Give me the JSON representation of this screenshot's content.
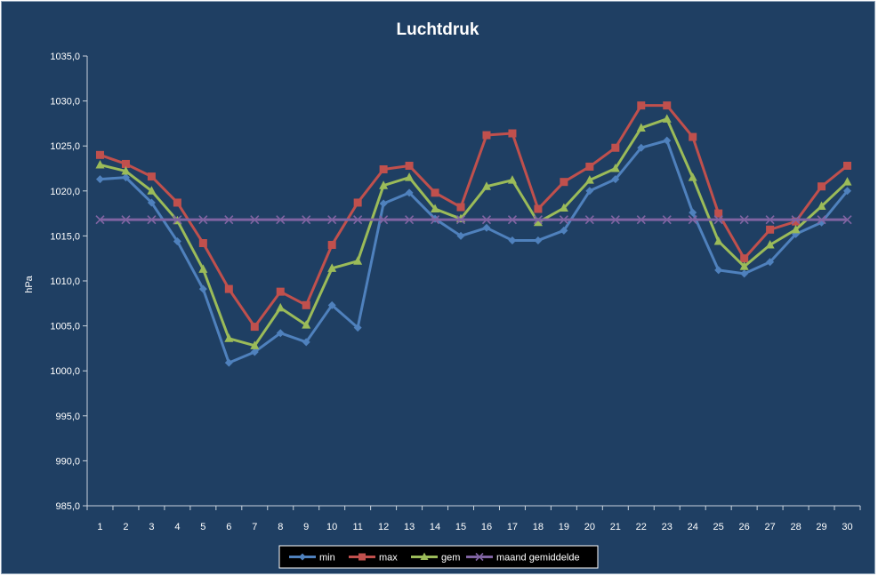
{
  "chart_data": {
    "type": "line",
    "title": "Luchtdruk",
    "xlabel": "",
    "ylabel": "hPa",
    "ylim": [
      985.0,
      1035.0
    ],
    "y_ticks": [
      "985,0",
      "990,0",
      "995,0",
      "1000,0",
      "1005,0",
      "1010,0",
      "1015,0",
      "1020,0",
      "1025,0",
      "1030,0",
      "1035,0"
    ],
    "categories": [
      "1",
      "2",
      "3",
      "4",
      "5",
      "6",
      "7",
      "8",
      "9",
      "10",
      "11",
      "12",
      "13",
      "14",
      "15",
      "16",
      "17",
      "18",
      "19",
      "20",
      "21",
      "22",
      "23",
      "24",
      "25",
      "26",
      "27",
      "28",
      "29",
      "30"
    ],
    "grid": false,
    "legend_position": "bottom",
    "series": [
      {
        "name": "min",
        "color": "#4f81bd",
        "marker": "diamond",
        "values": [
          1021.3,
          1021.5,
          1018.7,
          1014.4,
          1009.1,
          1000.9,
          1002.1,
          1004.2,
          1003.2,
          1007.3,
          1004.8,
          1018.6,
          1019.8,
          1016.9,
          1015.0,
          1015.9,
          1014.5,
          1014.5,
          1015.6,
          1020.0,
          1021.3,
          1024.8,
          1025.6,
          1017.6,
          1011.2,
          1010.8,
          1012.1,
          1015.2,
          1016.5,
          1020.0
        ]
      },
      {
        "name": "max",
        "color": "#c0504d",
        "marker": "square",
        "values": [
          1024.0,
          1023.0,
          1021.6,
          1018.7,
          1014.2,
          1009.1,
          1004.9,
          1008.8,
          1007.3,
          1014.0,
          1018.7,
          1022.4,
          1022.8,
          1019.8,
          1018.2,
          1026.2,
          1026.4,
          1018.0,
          1021.0,
          1022.7,
          1024.8,
          1029.5,
          1029.5,
          1026.0,
          1017.5,
          1012.5,
          1015.7,
          1016.6,
          1020.5,
          1022.8
        ]
      },
      {
        "name": "gem",
        "color": "#9bbb59",
        "marker": "triangle",
        "values": [
          1022.9,
          1022.2,
          1020.0,
          1016.7,
          1011.3,
          1003.6,
          1002.8,
          1007.0,
          1005.1,
          1011.4,
          1012.2,
          1020.6,
          1021.5,
          1018.0,
          1016.9,
          1020.5,
          1021.2,
          1016.5,
          1018.1,
          1021.2,
          1022.5,
          1027.0,
          1028.0,
          1021.5,
          1014.4,
          1011.6,
          1014.0,
          1015.7,
          1018.3,
          1021.0
        ]
      },
      {
        "name": "maand gemiddelde",
        "color": "#8064a2",
        "marker": "x",
        "values": [
          1016.8,
          1016.8,
          1016.8,
          1016.8,
          1016.8,
          1016.8,
          1016.8,
          1016.8,
          1016.8,
          1016.8,
          1016.8,
          1016.8,
          1016.8,
          1016.8,
          1016.8,
          1016.8,
          1016.8,
          1016.8,
          1016.8,
          1016.8,
          1016.8,
          1016.8,
          1016.8,
          1016.8,
          1016.8,
          1016.8,
          1016.8,
          1016.8,
          1016.8,
          1016.8
        ]
      }
    ]
  }
}
